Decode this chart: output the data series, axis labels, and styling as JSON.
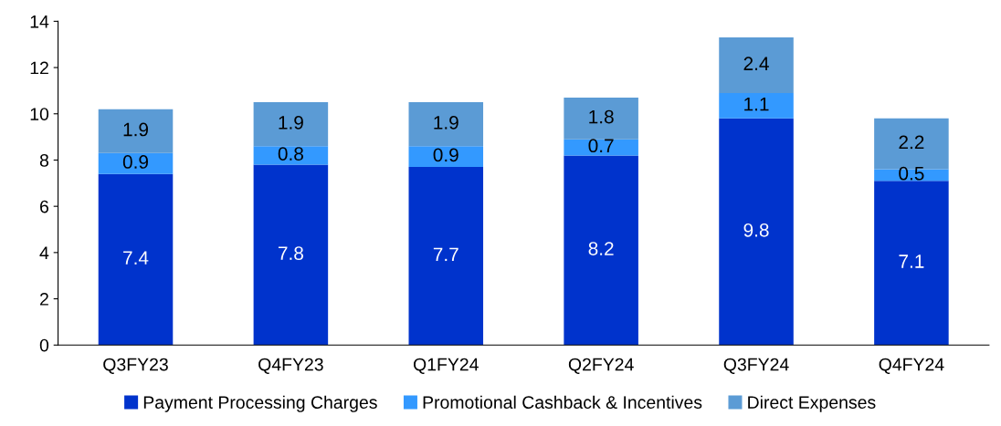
{
  "chart_data": {
    "type": "bar",
    "stacked": true,
    "categories": [
      "Q3FY23",
      "Q4FY23",
      "Q1FY24",
      "Q2FY24",
      "Q3FY24",
      "Q4FY24"
    ],
    "series": [
      {
        "name": "Payment Processing Charges",
        "color": "#0033cc",
        "values": [
          7.4,
          7.8,
          7.7,
          8.2,
          9.8,
          7.1
        ]
      },
      {
        "name": "Promotional Cashback & Incentives",
        "color": "#3399ff",
        "values": [
          0.9,
          0.8,
          0.9,
          0.7,
          1.1,
          0.5
        ]
      },
      {
        "name": "Direct Expenses",
        "color": "#5b9bd5",
        "values": [
          1.9,
          1.9,
          1.9,
          1.8,
          2.4,
          2.2
        ]
      }
    ],
    "ylim": [
      0,
      14
    ],
    "yticks": [
      0,
      2,
      4,
      6,
      8,
      10,
      12,
      14
    ],
    "data_labels": true,
    "grid": false,
    "legend": "bottom"
  }
}
